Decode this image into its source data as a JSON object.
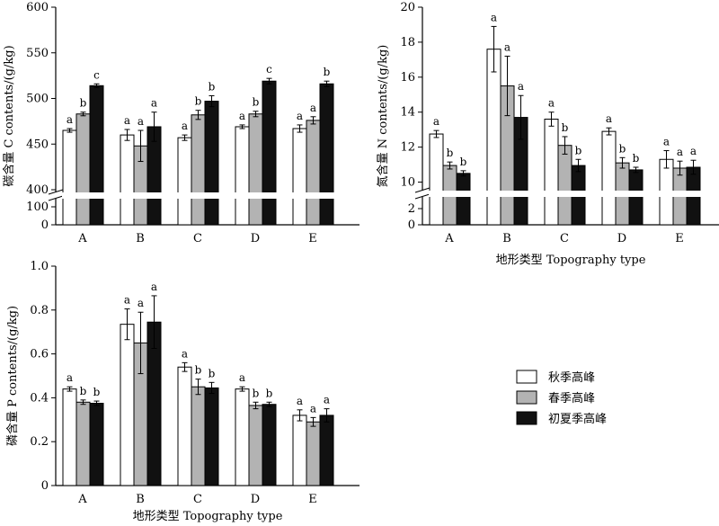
{
  "colors": {
    "series": [
      "#ffffff",
      "#b3b3b3",
      "#111111"
    ],
    "axis": "#000000"
  },
  "legend": {
    "placement": "right-middle",
    "entries": [
      "秋季高峰",
      "春季高峰",
      "初夏季高峰"
    ]
  },
  "chart_data": [
    {
      "id": "carbon",
      "type": "bar",
      "ylabel": "碳含量 C contents/(g/kg)",
      "xlabel": "",
      "categories": [
        "A",
        "B",
        "C",
        "D",
        "E"
      ],
      "axis_break": {
        "lower": [
          0,
          100
        ],
        "upper": [
          400,
          600
        ]
      },
      "ylim": [
        0,
        600
      ],
      "yticks_upper": [
        "400",
        "450",
        "500",
        "550",
        "600"
      ],
      "yticks_lower": [
        "0",
        "100"
      ],
      "series": [
        {
          "name": "秋季高峰",
          "values": [
            465,
            460,
            457,
            469,
            467
          ],
          "errors": [
            2,
            6,
            3,
            2,
            4
          ],
          "labels": [
            "a",
            "a",
            "a",
            "a",
            "a"
          ]
        },
        {
          "name": "春季高峰",
          "values": [
            483,
            448,
            482,
            483,
            476
          ],
          "errors": [
            2,
            17,
            5,
            3,
            4
          ],
          "labels": [
            "b",
            "a",
            "b",
            "b",
            "a"
          ]
        },
        {
          "name": "初夏季高峰",
          "values": [
            514,
            469,
            497,
            519,
            516
          ],
          "errors": [
            2,
            16,
            6,
            3,
            3
          ],
          "labels": [
            "c",
            "a",
            "b",
            "c",
            "b"
          ]
        }
      ]
    },
    {
      "id": "nitrogen",
      "type": "bar",
      "ylabel": "氮含量 N contents/(g/kg)",
      "xlabel": "地形类型 Topography type",
      "categories": [
        "A",
        "B",
        "C",
        "D",
        "E"
      ],
      "axis_break": {
        "lower": [
          0,
          2
        ],
        "upper": [
          9,
          20
        ]
      },
      "ylim": [
        0,
        20
      ],
      "yticks_upper": [
        "10",
        "12",
        "14",
        "16",
        "18",
        "20"
      ],
      "yticks_lower": [
        "0",
        "2"
      ],
      "series": [
        {
          "name": "秋季高峰",
          "values": [
            12.75,
            17.6,
            13.6,
            12.9,
            11.3
          ],
          "errors": [
            0.2,
            1.3,
            0.4,
            0.2,
            0.5
          ],
          "labels": [
            "a",
            "a",
            "a",
            "a",
            "a"
          ]
        },
        {
          "name": "春季高峰",
          "values": [
            10.95,
            15.5,
            12.1,
            11.1,
            10.8
          ],
          "errors": [
            0.2,
            1.7,
            0.5,
            0.3,
            0.4
          ],
          "labels": [
            "b",
            "a",
            "b",
            "b",
            "a"
          ]
        },
        {
          "name": "初夏季高峰",
          "values": [
            10.5,
            13.7,
            10.95,
            10.7,
            10.85
          ],
          "errors": [
            0.15,
            1.25,
            0.35,
            0.15,
            0.4
          ],
          "labels": [
            "b",
            "a",
            "b",
            "b",
            "a"
          ]
        }
      ]
    },
    {
      "id": "phosphorus",
      "type": "bar",
      "ylabel": "磷含量 P contents/(g/kg)",
      "xlabel": "地形类型 Topography type",
      "categories": [
        "A",
        "B",
        "C",
        "D",
        "E"
      ],
      "ylim": [
        0,
        1.0
      ],
      "yticks": [
        "0",
        "0.2",
        "0.4",
        "0.6",
        "0.8",
        "1.0"
      ],
      "series": [
        {
          "name": "秋季高峰",
          "values": [
            0.44,
            0.735,
            0.54,
            0.44,
            0.32
          ],
          "errors": [
            0.01,
            0.07,
            0.02,
            0.01,
            0.025
          ],
          "labels": [
            "a",
            "a",
            "a",
            "a",
            "a"
          ]
        },
        {
          "name": "春季高峰",
          "values": [
            0.38,
            0.65,
            0.45,
            0.365,
            0.29
          ],
          "errors": [
            0.01,
            0.14,
            0.035,
            0.015,
            0.02
          ],
          "labels": [
            "b",
            "a",
            "b",
            "b",
            "a"
          ]
        },
        {
          "name": "初夏季高峰",
          "values": [
            0.375,
            0.745,
            0.445,
            0.37,
            0.32
          ],
          "errors": [
            0.01,
            0.12,
            0.025,
            0.01,
            0.03
          ],
          "labels": [
            "b",
            "a",
            "b",
            "b",
            "a"
          ]
        }
      ]
    }
  ]
}
